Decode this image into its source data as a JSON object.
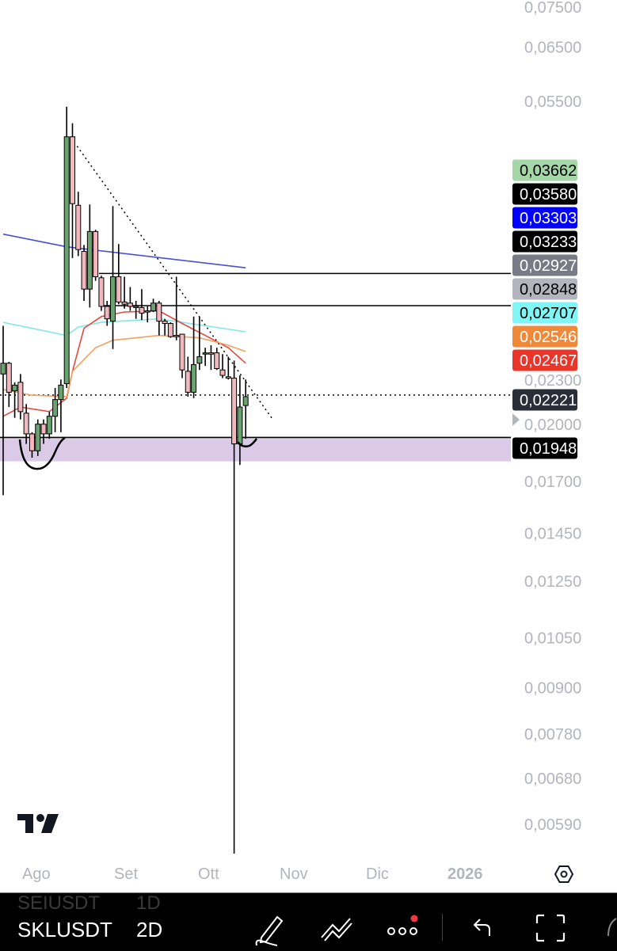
{
  "price_scale": {
    "ticks": [
      "0,07500",
      "0,06500",
      "0,05500",
      "0,02300",
      "0,02000",
      "0,01700",
      "0,01450",
      "0,01250",
      "0,01050",
      "0,00900",
      "0,00780",
      "0,00680",
      "0,00590"
    ],
    "tick_values": [
      0.075,
      0.065,
      0.055,
      0.023,
      0.02,
      0.017,
      0.0145,
      0.0125,
      0.0105,
      0.009,
      0.0078,
      0.0068,
      0.0059
    ],
    "badges": [
      {
        "text": "0,03662",
        "value": 0.03662,
        "bg": "#a5d6a7",
        "fg": "#000000"
      },
      {
        "text": "0,03580",
        "value": 0.0358,
        "bg": "#000000",
        "fg": "#ffffff"
      },
      {
        "text": "0,03303",
        "value": 0.03303,
        "bg": "#0000ff",
        "fg": "#ffffff"
      },
      {
        "text": "0,03233",
        "value": 0.03233,
        "bg": "#000000",
        "fg": "#ffffff"
      },
      {
        "text": "0,02927",
        "value": 0.02927,
        "bg": "#787b86",
        "fg": "#ffffff"
      },
      {
        "text": "0,02848",
        "value": 0.02848,
        "bg": "#b2b5be",
        "fg": "#000000"
      },
      {
        "text": "0,02707",
        "value": 0.02707,
        "bg": "#7ff5f5",
        "fg": "#000000"
      },
      {
        "text": "0,02546",
        "value": 0.02546,
        "bg": "#f0883a",
        "fg": "#ffffff"
      },
      {
        "text": "0,02467",
        "value": 0.02467,
        "bg": "#e8362b",
        "fg": "#ffffff"
      },
      {
        "text": "0,02221",
        "value": 0.02221,
        "bg": "#2a2e39",
        "fg": "#ffffff"
      },
      {
        "text": "0,01948",
        "value": 0.01948,
        "bg": "#000000",
        "fg": "#ffffff"
      }
    ]
  },
  "time_axis": [
    "Ago",
    "Set",
    "Ott",
    "Nov",
    "Dic",
    "2026"
  ],
  "chart_data": {
    "type": "candlestick",
    "scale": "log",
    "interval": "2D",
    "up_color": "#6aa36f",
    "down_color": "#f2b8bd",
    "candles": [
      [
        0.0237,
        0.0275,
        0.0163,
        0.0245
      ],
      [
        0.0245,
        0.0246,
        0.0214,
        0.0224
      ],
      [
        0.0225,
        0.0231,
        0.0207,
        0.0229
      ],
      [
        0.0231,
        0.0237,
        0.0206,
        0.0211
      ],
      [
        0.021,
        0.0216,
        0.0191,
        0.0197
      ],
      [
        0.0197,
        0.0198,
        0.0183,
        0.0187
      ],
      [
        0.0187,
        0.0206,
        0.0184,
        0.0203
      ],
      [
        0.0203,
        0.0206,
        0.0191,
        0.0197
      ],
      [
        0.0197,
        0.0211,
        0.0194,
        0.0208
      ],
      [
        0.0208,
        0.0227,
        0.0198,
        0.0219
      ],
      [
        0.0219,
        0.0233,
        0.0198,
        0.0229
      ],
      [
        0.023,
        0.0541,
        0.0227,
        0.0493
      ],
      [
        0.0493,
        0.0514,
        0.0339,
        0.0401
      ],
      [
        0.0399,
        0.0416,
        0.0341,
        0.0348
      ],
      [
        0.0346,
        0.0353,
        0.0297,
        0.0308
      ],
      [
        0.0308,
        0.04,
        0.0291,
        0.0368
      ],
      [
        0.0368,
        0.037,
        0.0316,
        0.032
      ],
      [
        0.0319,
        0.0321,
        0.0288,
        0.0292
      ],
      [
        0.0292,
        0.0297,
        0.0275,
        0.0281
      ],
      [
        0.0279,
        0.0398,
        0.0256,
        0.032
      ],
      [
        0.032,
        0.0354,
        0.0294,
        0.0296
      ],
      [
        0.0296,
        0.032,
        0.029,
        0.0294
      ],
      [
        0.0295,
        0.031,
        0.0288,
        0.0292
      ],
      [
        0.0292,
        0.0297,
        0.0281,
        0.0291
      ],
      [
        0.0291,
        0.0308,
        0.028,
        0.0286
      ],
      [
        0.0288,
        0.0292,
        0.0278,
        0.0287
      ],
      [
        0.0288,
        0.0299,
        0.0287,
        0.0295
      ],
      [
        0.0295,
        0.0297,
        0.0267,
        0.0279
      ],
      [
        0.0279,
        0.0281,
        0.0267,
        0.0277
      ],
      [
        0.0277,
        0.0278,
        0.0265,
        0.0266
      ],
      [
        0.0267,
        0.032,
        0.0263,
        0.0266
      ],
      [
        0.0268,
        0.0268,
        0.0234,
        0.024
      ],
      [
        0.0239,
        0.025,
        0.0221,
        0.0224
      ],
      [
        0.0224,
        0.0283,
        0.022,
        0.0244
      ],
      [
        0.0245,
        0.0283,
        0.024,
        0.025
      ],
      [
        0.0252,
        0.0257,
        0.0243,
        0.0253
      ],
      [
        0.0253,
        0.0259,
        0.024,
        0.0252
      ],
      [
        0.0253,
        0.0257,
        0.024,
        0.0241
      ],
      [
        0.024,
        0.0252,
        0.0234,
        0.0236
      ],
      [
        0.0235,
        0.025,
        0.0233,
        0.0234
      ],
      [
        0.0234,
        0.0247,
        0.00539,
        0.0191
      ],
      [
        0.0191,
        0.0236,
        0.0179,
        0.0214
      ],
      [
        0.0215,
        0.0233,
        0.0194,
        0.0221
      ]
    ],
    "moving_averages": [
      {
        "color": "#4a4fd6",
        "points": [
          [
            0,
            0.0365
          ],
          [
            11,
            0.0351
          ],
          [
            42,
            0.0329
          ]
        ]
      },
      {
        "color": "#7fe8e8",
        "points": [
          [
            0,
            0.0278
          ],
          [
            11,
            0.0267
          ],
          [
            13,
            0.0274
          ],
          [
            17,
            0.0278
          ],
          [
            27,
            0.0281
          ],
          [
            42,
            0.027
          ]
        ]
      },
      {
        "color": "#e34a3f",
        "points": [
          [
            0,
            0.0208
          ],
          [
            3,
            0.0214
          ],
          [
            8,
            0.0211
          ],
          [
            11,
            0.022
          ],
          [
            12,
            0.0239
          ],
          [
            14,
            0.0273
          ],
          [
            17,
            0.0283
          ],
          [
            21,
            0.0287
          ],
          [
            27,
            0.0288
          ],
          [
            31,
            0.0277
          ],
          [
            35,
            0.0267
          ],
          [
            39,
            0.0257
          ],
          [
            42,
            0.0245
          ]
        ]
      },
      {
        "color": "#f3a15c",
        "points": [
          [
            0,
            0.0226
          ],
          [
            5,
            0.0222
          ],
          [
            11,
            0.0221
          ],
          [
            12,
            0.0239
          ],
          [
            16,
            0.0257
          ],
          [
            19,
            0.0263
          ],
          [
            27,
            0.0267
          ],
          [
            34,
            0.0265
          ],
          [
            39,
            0.0259
          ],
          [
            42,
            0.0254
          ]
        ]
      }
    ],
    "horizontal_lines": [
      0.03233,
      0.02927
    ],
    "current_price_line": 0.02221,
    "support_line": 0.01948,
    "support_zone": [
      0.0181,
      0.0194
    ],
    "zone_color": "#d6c4e4",
    "trendline": [
      [
        12.8,
        0.0479
      ],
      [
        46.5,
        0.0207
      ]
    ]
  },
  "toolbar": {
    "prev_symbol": "SEIUSDT",
    "prev_interval": "1D",
    "symbol": "SKLUSDT",
    "interval": "2D",
    "notification_color": "#f23645"
  }
}
